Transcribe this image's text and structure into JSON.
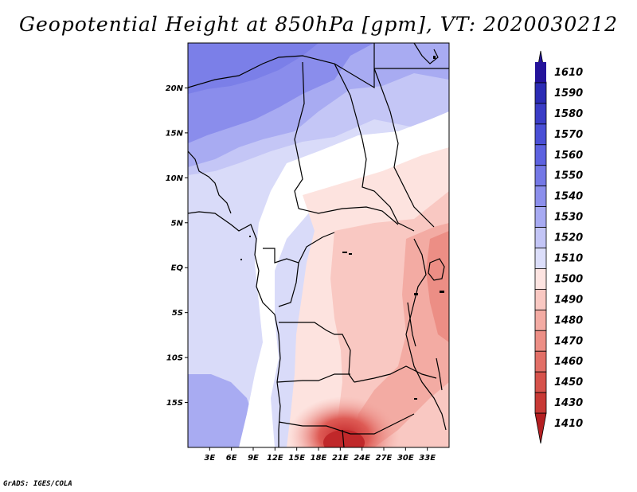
{
  "title": "Geopotential Height at 850hPa [gpm], VT: 2020030212",
  "footer": "GrADS: IGES/COLA",
  "map": {
    "x_ticks": [
      "3E",
      "6E",
      "9E",
      "12E",
      "15E",
      "18E",
      "21E",
      "24E",
      "27E",
      "30E",
      "33E"
    ],
    "y_ticks": [
      "20N",
      "15N",
      "10N",
      "5N",
      "EQ",
      "5S",
      "10S",
      "15S"
    ]
  },
  "colorbar": {
    "levels": [
      "1610",
      "1590",
      "1580",
      "1570",
      "1560",
      "1550",
      "1540",
      "1530",
      "1520",
      "1510",
      "1500",
      "1490",
      "1480",
      "1470",
      "1460",
      "1450",
      "1430",
      "1410"
    ],
    "colors": [
      "#24139a",
      "#2b2bb4",
      "#3a3cc6",
      "#4a4fd6",
      "#5d62e0",
      "#7478e6",
      "#8c8fec",
      "#a7aaf2",
      "#c3c5f6",
      "#dcdefa",
      "#fde4e1",
      "#f9c8c2",
      "#f3aba3",
      "#ec8e85",
      "#e26f67",
      "#d6524b",
      "#c83935",
      "#b41f22"
    ]
  }
}
